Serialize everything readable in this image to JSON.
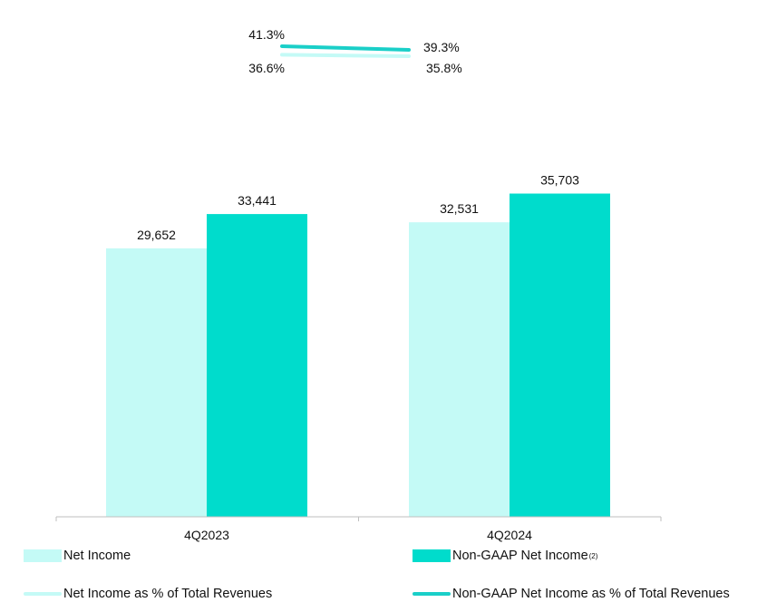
{
  "colors": {
    "net_income": "#c4faf6",
    "non_gaap": "#00dccc",
    "net_income_pct_line": "#c4faf6",
    "non_gaap_pct_line": "#1acfc8",
    "axis": "#bfbfbf",
    "text": "#111111"
  },
  "chart_data": {
    "type": "bar",
    "categories": [
      "4Q2023",
      "4Q2024"
    ],
    "series": [
      {
        "name": "Net Income",
        "values": [
          29652,
          32531
        ],
        "labels": [
          "29,652",
          "32,531"
        ]
      },
      {
        "name": "Non-GAAP Net Income",
        "values": [
          33441,
          35703
        ],
        "labels": [
          "33,441",
          "35,703"
        ]
      }
    ],
    "line_series": [
      {
        "name": "Net Income as % of Total Revenues",
        "values": [
          36.6,
          35.8
        ],
        "labels": [
          "36.6%",
          "35.8%"
        ]
      },
      {
        "name": "Non-GAAP Net Income as % of Total Revenues",
        "values": [
          41.3,
          39.3
        ],
        "labels": [
          "41.3%",
          "39.3%"
        ]
      }
    ],
    "ylim": [
      0,
      40000
    ],
    "legend_position": "bottom",
    "grid": false
  },
  "legend": {
    "net_income": "Net Income",
    "non_gaap": "Non-GAAP Net Income",
    "non_gaap_note": "(2)",
    "net_income_pct": "Net Income as % of Total Revenues",
    "non_gaap_pct": "Non-GAAP Net Income as % of Total Revenues"
  }
}
